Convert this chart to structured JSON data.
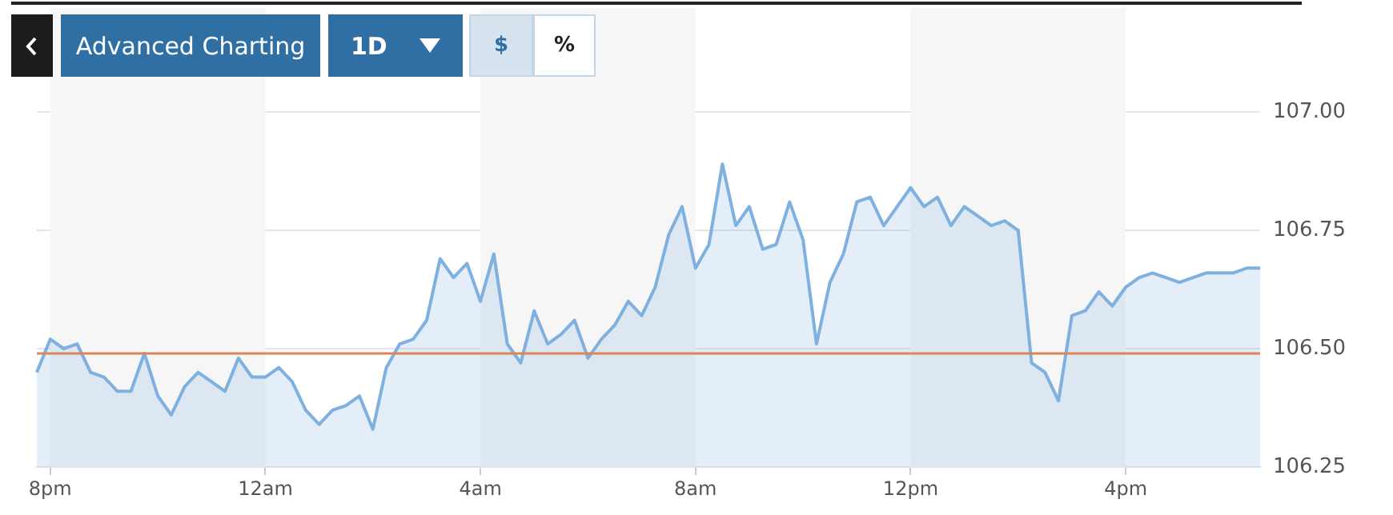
{
  "chart_data": {
    "type": "area",
    "annotations": [
      "Advanced Charting",
      "1D",
      "$",
      "%"
    ],
    "categories": [
      null,
      "8pm",
      null,
      null,
      null,
      null,
      null,
      null,
      null,
      null,
      null,
      null,
      null,
      null,
      null,
      null,
      null,
      "12am",
      null,
      null,
      null,
      null,
      null,
      null,
      null,
      null,
      null,
      null,
      null,
      null,
      null,
      null,
      null,
      "4am",
      null,
      null,
      null,
      null,
      null,
      null,
      null,
      null,
      null,
      null,
      null,
      null,
      null,
      null,
      null,
      "8am",
      null,
      null,
      null,
      null,
      null,
      null,
      null,
      null,
      null,
      null,
      null,
      null,
      null,
      null,
      null,
      "12pm",
      null,
      null,
      null,
      null,
      null,
      null,
      null,
      null,
      null,
      null,
      null,
      null,
      null,
      null,
      null,
      "4pm",
      null,
      null,
      null,
      null,
      null,
      null,
      null,
      null,
      null,
      null
    ],
    "series": [
      {
        "color": "#7eb0e0",
        "values": [
          106.45,
          106.52,
          106.5,
          106.51,
          106.45,
          106.44,
          106.41,
          106.41,
          106.49,
          106.4,
          106.36,
          106.42,
          106.45,
          106.43,
          106.41,
          106.48,
          106.44,
          106.44,
          106.46,
          106.43,
          106.37,
          106.34,
          106.37,
          106.38,
          106.4,
          106.33,
          106.46,
          106.51,
          106.52,
          106.56,
          106.69,
          106.65,
          106.68,
          106.6,
          106.7,
          106.51,
          106.47,
          106.58,
          106.51,
          106.53,
          106.56,
          106.48,
          106.52,
          106.55,
          106.6,
          106.57,
          106.63,
          106.74,
          106.8,
          106.67,
          106.72,
          106.89,
          106.76,
          106.8,
          106.71,
          106.72,
          106.81,
          106.73,
          106.51,
          106.64,
          106.7,
          106.81,
          106.82,
          106.76,
          106.8,
          106.84,
          106.8,
          106.82,
          106.76,
          106.8,
          106.78,
          106.76,
          106.77,
          106.75,
          106.47,
          106.45,
          106.39,
          106.57,
          106.58,
          106.62,
          106.59,
          106.63,
          106.65,
          106.66,
          106.65,
          106.64,
          106.65,
          106.66,
          106.66,
          106.66,
          106.67,
          106.67
        ]
      }
    ],
    "ylim": [
      106.25,
      107
    ],
    "yticks": [
      {
        "value": 106.25,
        "label": "106.25"
      },
      {
        "value": 106.5,
        "label": "106.50"
      },
      {
        "value": 106.75,
        "label": "106.75"
      },
      {
        "value": 107,
        "label": "107.00"
      }
    ],
    "ref_lines": [
      {
        "axis": "y",
        "value": 106.49,
        "color": "#d9865a"
      }
    ],
    "bands": [
      {
        "axis": "x",
        "from": "8pm",
        "to": "12am",
        "color": "#f6f6f6"
      },
      {
        "axis": "x",
        "from": "4am",
        "to": "8am",
        "color": "#f6f6f6"
      },
      {
        "axis": "x",
        "from": "12pm",
        "to": "4pm",
        "color": "#f6f6f6"
      }
    ],
    "grid": "y",
    "marker": "none",
    "line_style": "solid"
  }
}
